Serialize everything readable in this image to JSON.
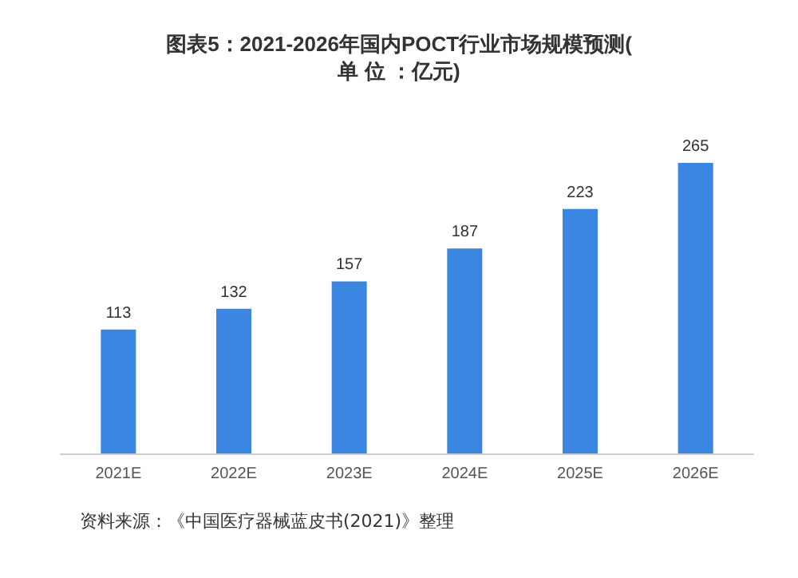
{
  "chart_data": {
    "type": "bar",
    "title": "图表5：2021-2026年国内POCT行业市场规模预测(单 位 ：亿元)",
    "categories": [
      "2021E",
      "2022E",
      "2023E",
      "2024E",
      "2025E",
      "2026E"
    ],
    "values": [
      113,
      132,
      157,
      187,
      223,
      265
    ],
    "color": "#3b86e0",
    "data_labels": true,
    "annotations": [
      "资料来源：《中国医疗器械蓝皮书(2021)》整理"
    ]
  }
}
